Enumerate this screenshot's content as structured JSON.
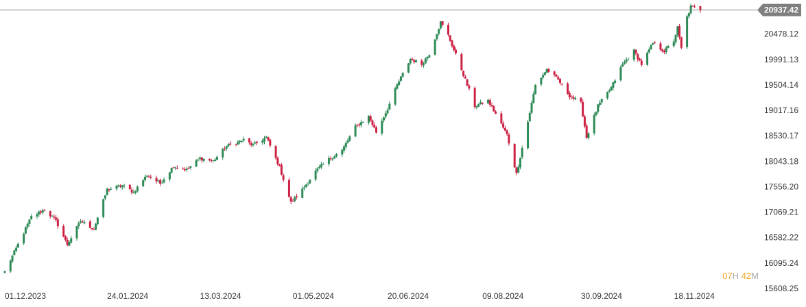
{
  "chart_data": {
    "type": "candlestick",
    "title": "",
    "xlabel": "",
    "ylabel": "",
    "ylim": [
      15608.25,
      21050
    ],
    "y_ticks": [
      "20478.12",
      "19991.13",
      "19504.14",
      "19017.16",
      "18530.17",
      "18043.18",
      "17556.20",
      "17069.21",
      "16582.22",
      "16095.24",
      "15608.25"
    ],
    "x_ticks": [
      "01.12.2023",
      "24.01.2024",
      "13.03.2024",
      "01.05.2024",
      "20.06.2024",
      "09.08.2024",
      "30.09.2024",
      "18.11.2024"
    ],
    "x_range": [
      "2023-12-01",
      "2024-11-25"
    ],
    "current_price": "20937.42",
    "current_value": 20937.42,
    "colors": {
      "up": "#2e8b57",
      "down": "#cc2244",
      "price_line": "#888888",
      "price_label_bg": "#7f7f7f",
      "countdown_accent": "#f5a623",
      "countdown_text": "#aaaaaa",
      "tick_text": "#333333"
    },
    "anchors": [
      [
        "2023-12-01",
        15930
      ],
      [
        "2023-12-08",
        16450
      ],
      [
        "2023-12-15",
        16980
      ],
      [
        "2023-12-22",
        17120
      ],
      [
        "2023-12-28",
        16900
      ],
      [
        "2024-01-03",
        16450
      ],
      [
        "2024-01-10",
        16900
      ],
      [
        "2024-01-17",
        16750
      ],
      [
        "2024-01-24",
        17500
      ],
      [
        "2024-02-01",
        17580
      ],
      [
        "2024-02-07",
        17450
      ],
      [
        "2024-02-14",
        17780
      ],
      [
        "2024-02-21",
        17620
      ],
      [
        "2024-02-28",
        17950
      ],
      [
        "2024-03-06",
        17880
      ],
      [
        "2024-03-13",
        18100
      ],
      [
        "2024-03-20",
        18050
      ],
      [
        "2024-03-27",
        18330
      ],
      [
        "2024-04-05",
        18450
      ],
      [
        "2024-04-10",
        18350
      ],
      [
        "2024-04-17",
        18500
      ],
      [
        "2024-04-24",
        17930
      ],
      [
        "2024-04-30",
        17250
      ],
      [
        "2024-05-06",
        17500
      ],
      [
        "2024-05-13",
        17850
      ],
      [
        "2024-05-20",
        18080
      ],
      [
        "2024-05-27",
        18250
      ],
      [
        "2024-06-03",
        18700
      ],
      [
        "2024-06-10",
        18900
      ],
      [
        "2024-06-14",
        18600
      ],
      [
        "2024-06-20",
        19050
      ],
      [
        "2024-06-25",
        19500
      ],
      [
        "2024-07-02",
        20000
      ],
      [
        "2024-07-08",
        19900
      ],
      [
        "2024-07-12",
        20100
      ],
      [
        "2024-07-18",
        20700
      ],
      [
        "2024-07-22",
        20450
      ],
      [
        "2024-07-29",
        19800
      ],
      [
        "2024-08-05",
        19100
      ],
      [
        "2024-08-12",
        19200
      ],
      [
        "2024-08-16",
        18950
      ],
      [
        "2024-08-22",
        18550
      ],
      [
        "2024-08-27",
        17800
      ],
      [
        "2024-09-02",
        18800
      ],
      [
        "2024-09-06",
        19500
      ],
      [
        "2024-09-12",
        19800
      ],
      [
        "2024-09-18",
        19600
      ],
      [
        "2024-09-24",
        19300
      ],
      [
        "2024-09-30",
        19150
      ],
      [
        "2024-10-03",
        18500
      ],
      [
        "2024-10-09",
        19100
      ],
      [
        "2024-10-16",
        19450
      ],
      [
        "2024-10-22",
        19900
      ],
      [
        "2024-10-28",
        20150
      ],
      [
        "2024-11-01",
        19900
      ],
      [
        "2024-11-07",
        20300
      ],
      [
        "2024-11-13",
        20150
      ],
      [
        "2024-11-18",
        20350
      ],
      [
        "2024-11-20",
        20600
      ],
      [
        "2024-11-22",
        20200
      ],
      [
        "2024-11-25",
        20800
      ],
      [
        "2024-11-27",
        21000
      ],
      [
        "2024-12-03",
        20937.42
      ]
    ]
  },
  "countdown": {
    "hours": "07",
    "hours_unit": "H",
    "minutes": "42",
    "minutes_unit": "M"
  }
}
